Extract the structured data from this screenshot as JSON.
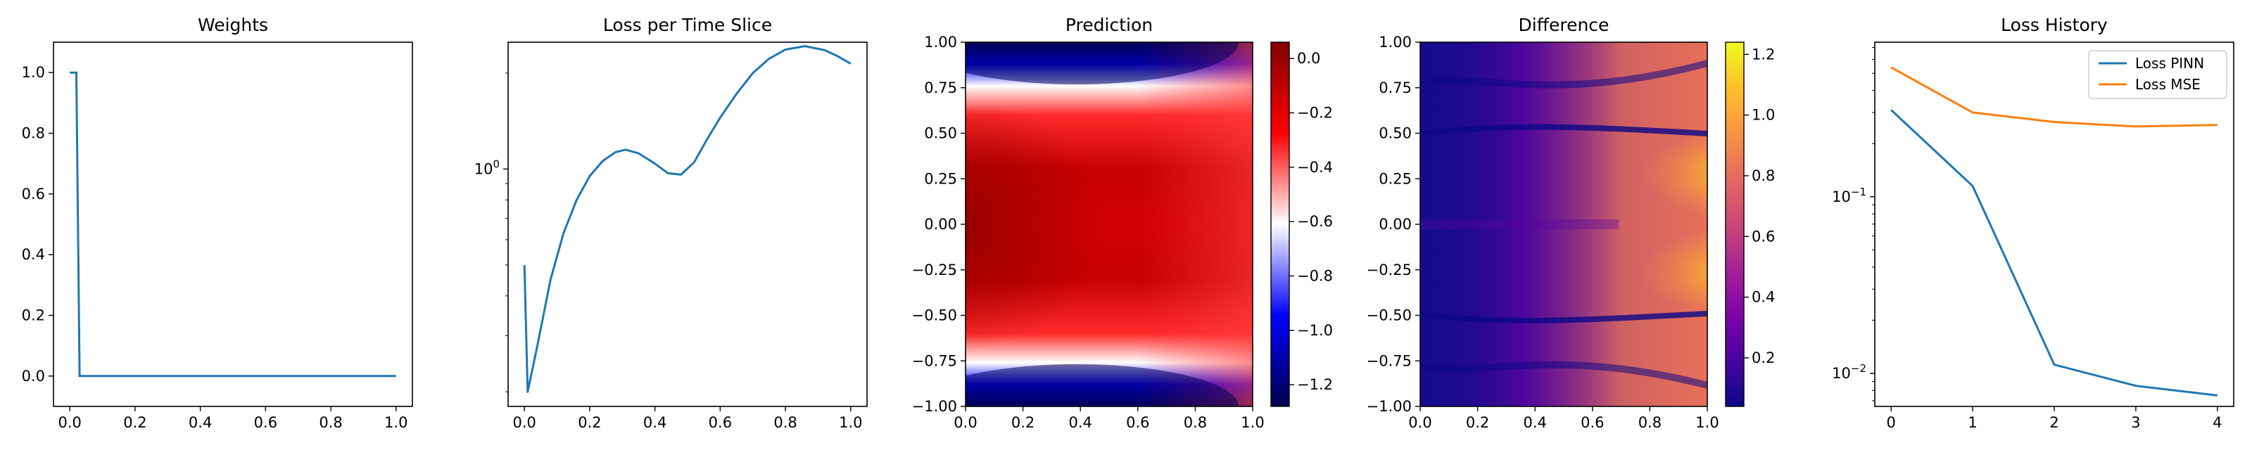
{
  "chart_data": [
    {
      "type": "line",
      "title": "Weights",
      "xlim": [
        -0.05,
        1.05
      ],
      "ylim": [
        -0.1,
        1.1
      ],
      "xticks": [
        0.0,
        0.2,
        0.4,
        0.6,
        0.8,
        1.0
      ],
      "xtick_labels": [
        "0.0",
        "0.2",
        "0.4",
        "0.6",
        "0.8",
        "1.0"
      ],
      "yticks": [
        0.0,
        0.2,
        0.4,
        0.6,
        0.8,
        1.0
      ],
      "ytick_labels": [
        "0.0",
        "0.2",
        "0.4",
        "0.6",
        "0.8",
        "1.0"
      ],
      "series": [
        {
          "color": "#1f77b4",
          "x": [
            0.0,
            0.02,
            0.03,
            1.0
          ],
          "y": [
            1.0,
            1.0,
            0.0,
            0.0
          ]
        }
      ]
    },
    {
      "type": "line",
      "title": "Loss per Time Slice",
      "yscale": "log",
      "xlim": [
        -0.05,
        1.05
      ],
      "ylim": [
        0.18,
        2.5
      ],
      "xticks": [
        0.0,
        0.2,
        0.4,
        0.6,
        0.8,
        1.0
      ],
      "xtick_labels": [
        "0.0",
        "0.2",
        "0.4",
        "0.6",
        "0.8",
        "1.0"
      ],
      "yticks": [
        1.0
      ],
      "ytick_labels": [
        "10^0"
      ],
      "series": [
        {
          "color": "#1f77b4",
          "x": [
            0.0,
            0.01,
            0.04,
            0.08,
            0.12,
            0.16,
            0.2,
            0.24,
            0.28,
            0.31,
            0.35,
            0.4,
            0.44,
            0.48,
            0.52,
            0.56,
            0.6,
            0.65,
            0.7,
            0.75,
            0.8,
            0.86,
            0.92,
            0.96,
            1.0
          ],
          "y": [
            0.5,
            0.2,
            0.28,
            0.45,
            0.63,
            0.8,
            0.95,
            1.06,
            1.13,
            1.15,
            1.12,
            1.04,
            0.97,
            0.96,
            1.05,
            1.24,
            1.45,
            1.72,
            2.0,
            2.22,
            2.37,
            2.43,
            2.36,
            2.26,
            2.14
          ]
        }
      ]
    },
    {
      "type": "heatmap",
      "title": "Prediction",
      "xlim": [
        0.0,
        1.0
      ],
      "ylim": [
        -1.0,
        1.0
      ],
      "xticks": [
        0.0,
        0.2,
        0.4,
        0.6,
        0.8,
        1.0
      ],
      "xtick_labels": [
        "0.0",
        "0.2",
        "0.4",
        "0.6",
        "0.8",
        "1.0"
      ],
      "yticks": [
        1.0,
        0.75,
        0.5,
        0.25,
        0.0,
        -0.25,
        -0.5,
        -0.75,
        -1.0
      ],
      "ytick_labels": [
        "1.00",
        "0.75",
        "0.50",
        "0.25",
        "0.00",
        "−0.25",
        "−0.50",
        "−0.75",
        "−1.00"
      ],
      "colormap": "seismic",
      "colorbar": {
        "range": [
          -1.28,
          0.06
        ],
        "ticks": [
          0.0,
          -0.2,
          -0.4,
          -0.6,
          -0.8,
          -1.0,
          -1.2
        ],
        "tick_labels": [
          "0.0",
          "−0.2",
          "−0.4",
          "−0.6",
          "−0.8",
          "−1.0",
          "−1.2"
        ]
      },
      "description_values": {
        "center_value": -0.1,
        "top_bottom_edge_value": -1.25
      }
    },
    {
      "type": "heatmap",
      "title": "Difference",
      "xlim": [
        0.0,
        1.0
      ],
      "ylim": [
        -1.0,
        1.0
      ],
      "xticks": [
        0.0,
        0.2,
        0.4,
        0.6,
        0.8,
        1.0
      ],
      "xtick_labels": [
        "0.0",
        "0.2",
        "0.4",
        "0.6",
        "0.8",
        "1.0"
      ],
      "yticks": [
        1.0,
        0.75,
        0.5,
        0.25,
        0.0,
        -0.25,
        -0.5,
        -0.75,
        -1.0
      ],
      "ytick_labels": [
        "1.00",
        "0.75",
        "0.50",
        "0.25",
        "0.00",
        "−0.25",
        "−0.50",
        "−0.75",
        "−1.00"
      ],
      "colormap": "plasma",
      "colorbar": {
        "range": [
          0.04,
          1.24
        ],
        "ticks": [
          1.2,
          1.0,
          0.8,
          0.6,
          0.4,
          0.2
        ],
        "tick_labels": [
          "1.2",
          "1.0",
          "0.8",
          "0.6",
          "0.4",
          "0.2"
        ]
      },
      "description_values": {
        "max_value": 1.24,
        "min_value": 0.04
      }
    },
    {
      "type": "line",
      "title": "Loss History",
      "yscale": "log",
      "xlim": [
        -0.2,
        4.2
      ],
      "ylim": [
        0.0065,
        0.75
      ],
      "xticks": [
        0,
        1,
        2,
        3,
        4
      ],
      "xtick_labels": [
        "0",
        "1",
        "2",
        "3",
        "4"
      ],
      "yticks": [
        0.1,
        0.01
      ],
      "ytick_labels": [
        "10^-1",
        "10^-2"
      ],
      "legend_position": "top-right",
      "series": [
        {
          "name": "Loss PINN",
          "color": "#1f77b4",
          "x": [
            0,
            1,
            2,
            3,
            4
          ],
          "y": [
            0.31,
            0.115,
            0.0112,
            0.0085,
            0.0075
          ]
        },
        {
          "name": "Loss MSE",
          "color": "#ff7f0e",
          "x": [
            0,
            1,
            2,
            3,
            4
          ],
          "y": [
            0.54,
            0.3,
            0.265,
            0.25,
            0.255
          ]
        }
      ]
    }
  ]
}
